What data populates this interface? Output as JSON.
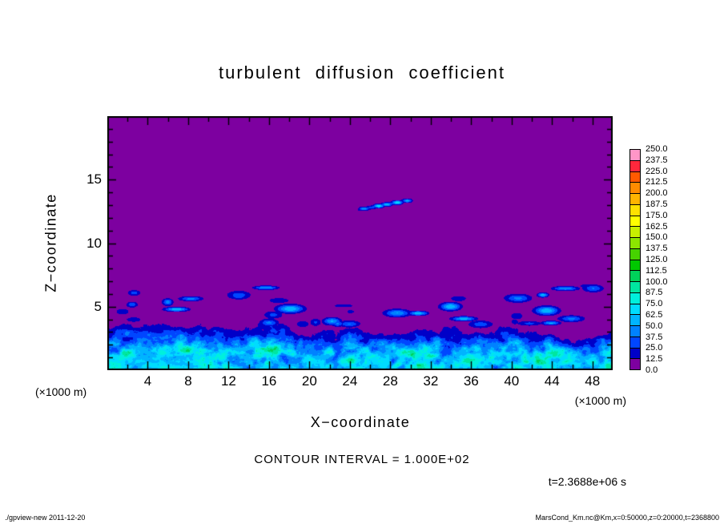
{
  "title": "turbulent diffusion coefficient",
  "axes": {
    "x": {
      "label": "X−coordinate",
      "unit": "(×1000 m)",
      "min": 0,
      "max": 50,
      "tick_values": [
        4,
        8,
        12,
        16,
        20,
        24,
        28,
        32,
        36,
        40,
        44,
        48
      ],
      "tick_labels": [
        "4",
        "8",
        "12",
        "16",
        "20",
        "24",
        "28",
        "32",
        "36",
        "40",
        "44",
        "48"
      ],
      "minor_step": 2,
      "major_step": 4
    },
    "y": {
      "label": "Z−coordinate",
      "unit": "(×1000 m)",
      "min": 0,
      "max": 20,
      "tick_values": [
        5,
        10,
        15
      ],
      "tick_labels": [
        "5",
        "10",
        "15"
      ],
      "minor_step": 1,
      "major_step": 5
    }
  },
  "colorbar": {
    "labels_top_to_bottom": [
      "250.0",
      "237.5",
      "225.0",
      "212.5",
      "200.0",
      "187.5",
      "175.0",
      "162.5",
      "150.0",
      "137.5",
      "125.0",
      "112.5",
      "100.0",
      "87.5",
      "75.0",
      "62.5",
      "50.0",
      "37.5",
      "25.0",
      "12.5",
      "0.0"
    ]
  },
  "annotations": {
    "contour_interval": "CONTOUR INTERVAL = 1.000E+02",
    "time_label": "t=2.3688e+06 s"
  },
  "footer": {
    "left": "./gpview-new  2011-12-20",
    "right": "MarsCond_Km.nc@Km,x=0:50000,z=0:20000,t=2368800"
  },
  "chart_data": {
    "type": "heatmap",
    "title": "turbulent diffusion coefficient",
    "xlabel": "X−coordinate (×1000 m)",
    "ylabel": "Z−coordinate (×1000 m)",
    "xlim": [
      0,
      50
    ],
    "ylim": [
      0,
      20
    ],
    "contour_interval": 100.0,
    "time_seconds": 2368800,
    "tone_levels": [
      0.0,
      12.5,
      25.0,
      37.5,
      50.0,
      62.5,
      75.0,
      87.5,
      100.0,
      112.5,
      125.0,
      137.5,
      150.0,
      162.5,
      175.0,
      187.5,
      200.0,
      212.5,
      225.0,
      237.5,
      250.0
    ],
    "tone_colors_low_to_high": [
      "#7D00A0",
      "#0000C8",
      "#0046FF",
      "#0082FF",
      "#00B4FF",
      "#00DCFF",
      "#00F0DC",
      "#00E6A0",
      "#00D25A",
      "#00C800",
      "#46D200",
      "#8CE600",
      "#C8F000",
      "#FFFF00",
      "#FFE100",
      "#FFB400",
      "#FF8C00",
      "#FF5A00",
      "#FF283C",
      "#FF96C8"
    ],
    "background_value_range": [
      0.0,
      12.5
    ],
    "features": {
      "boundary_layer": {
        "description": "turbulent surface layer with convective plumes, values mostly 25-100, bright cyan cores near ground",
        "height_range_km": [
          2.2,
          5.0
        ],
        "value_range": [
          12.5,
          108
        ]
      },
      "plumes": {
        "description": "small detached blue specks above the boundary layer top",
        "count": 40,
        "z_range": [
          3.6,
          6.8
        ],
        "value_range": [
          16,
          62
        ]
      },
      "detached_streak": {
        "description": "thin elevated turbulent layer rising gently to the right",
        "from": [
          24.3,
          12.55
        ],
        "to": [
          30.4,
          13.45
        ],
        "peak_value": 100
      }
    }
  }
}
